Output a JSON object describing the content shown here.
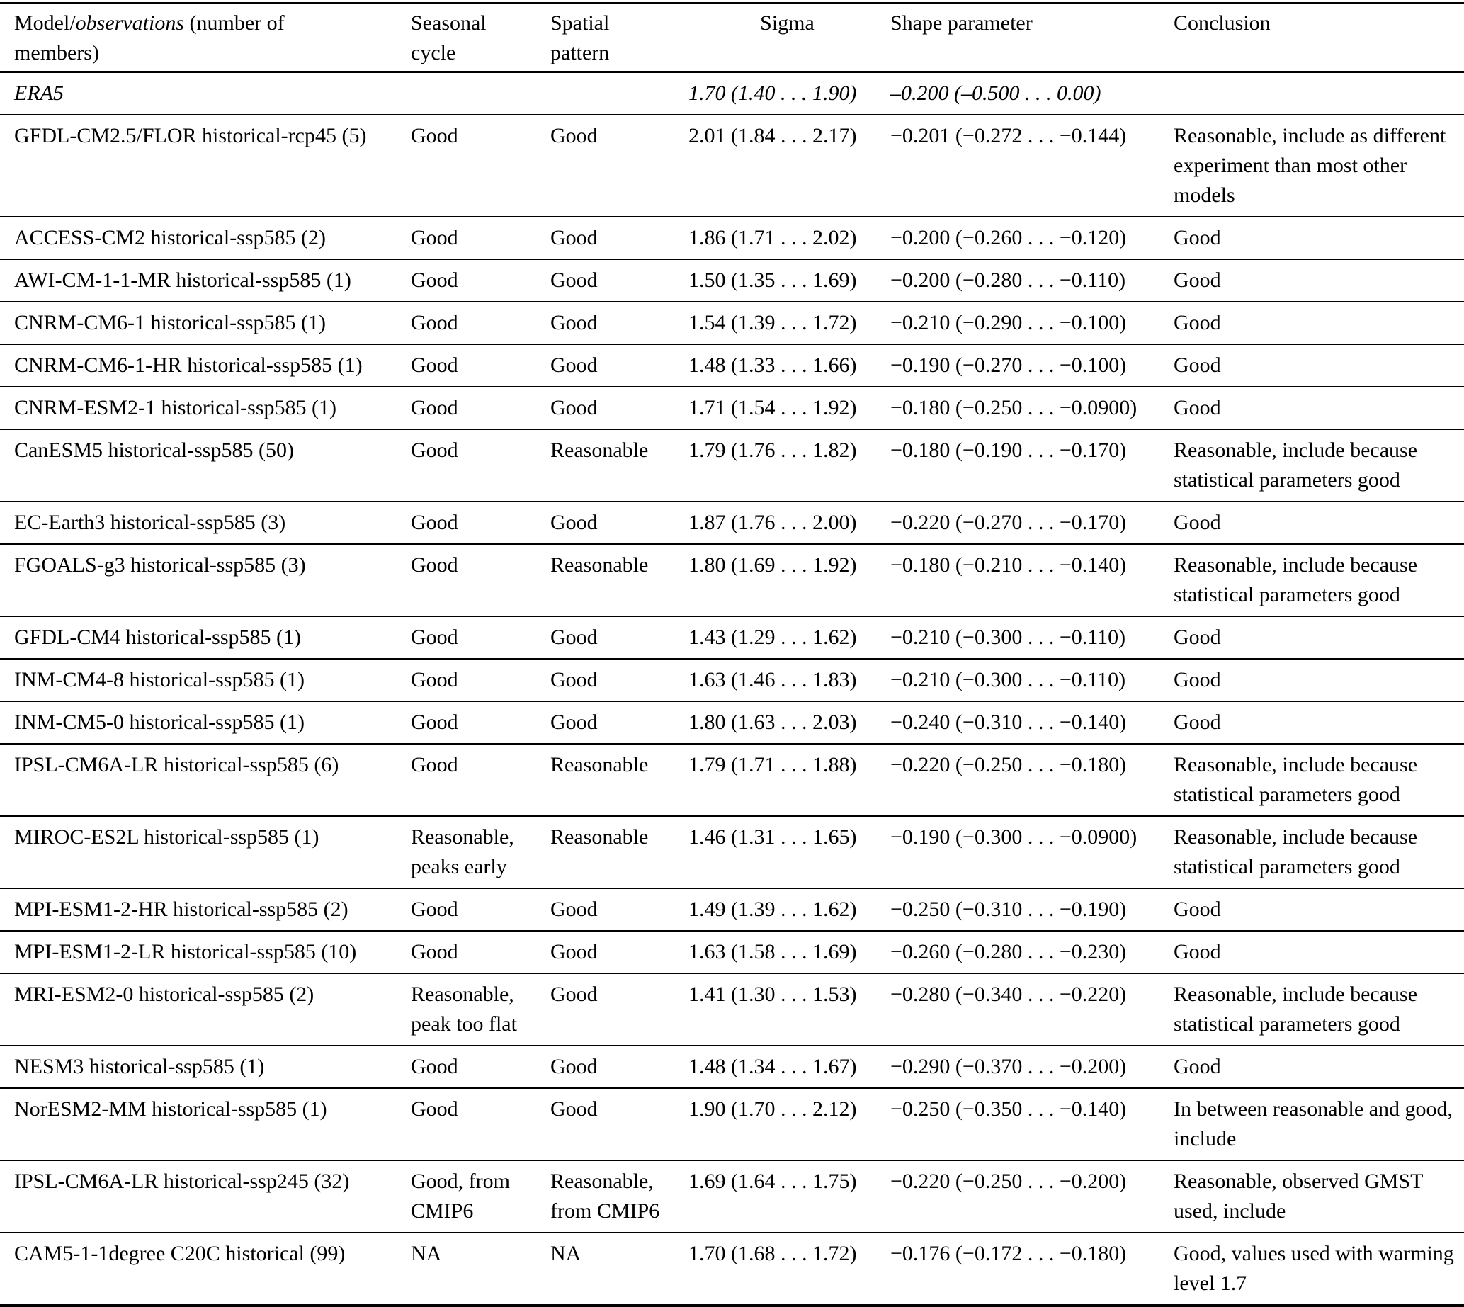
{
  "colors": {
    "background": "#ffffff",
    "text": "#000000",
    "rule": "#000000"
  },
  "table": {
    "header": {
      "model": {
        "prefix": "Model/",
        "italic_word": "observations",
        "suffix": " (number of members)"
      },
      "seasonal": "Seasonal cycle",
      "spatial": "Spatial pattern",
      "sigma": "Sigma",
      "shape": "Shape parameter",
      "conclusion": "Conclusion"
    },
    "rows": [
      {
        "model": "ERA5",
        "seasonal": "",
        "spatial": "",
        "sigma": "1.70 (1.40 . . . 1.90)",
        "shape": "–0.200 (–0.500 . . . 0.00)",
        "conclusion": "",
        "italic": true
      },
      {
        "model": "GFDL-CM2.5/FLOR historical-rcp45 (5)",
        "seasonal": "Good",
        "spatial": "Good",
        "sigma": "2.01 (1.84 . . . 2.17)",
        "shape": "−0.201 (−0.272 . . . −0.144)",
        "conclusion": "Reasonable, include as different experiment than most other models"
      },
      {
        "model": "ACCESS-CM2 historical-ssp585 (2)",
        "seasonal": "Good",
        "spatial": "Good",
        "sigma": "1.86 (1.71 . . . 2.02)",
        "shape": "−0.200 (−0.260 . . . −0.120)",
        "conclusion": "Good"
      },
      {
        "model": "AWI-CM-1-1-MR historical-ssp585 (1)",
        "seasonal": "Good",
        "spatial": "Good",
        "sigma": "1.50 (1.35 . . . 1.69)",
        "shape": "−0.200 (−0.280 . . . −0.110)",
        "conclusion": "Good"
      },
      {
        "model": "CNRM-CM6-1 historical-ssp585 (1)",
        "seasonal": "Good",
        "spatial": "Good",
        "sigma": "1.54 (1.39 . . . 1.72)",
        "shape": "−0.210 (−0.290 . . . −0.100)",
        "conclusion": "Good"
      },
      {
        "model": "CNRM-CM6-1-HR historical-ssp585 (1)",
        "seasonal": "Good",
        "spatial": "Good",
        "sigma": "1.48 (1.33 . . . 1.66)",
        "shape": "−0.190 (−0.270 . . . −0.100)",
        "conclusion": "Good"
      },
      {
        "model": "CNRM-ESM2-1 historical-ssp585 (1)",
        "seasonal": "Good",
        "spatial": "Good",
        "sigma": "1.71 (1.54 . . . 1.92)",
        "shape": "−0.180 (−0.250 . . . −0.0900)",
        "conclusion": "Good"
      },
      {
        "model": "CanESM5 historical-ssp585 (50)",
        "seasonal": "Good",
        "spatial": "Reasonable",
        "sigma": "1.79 (1.76 . . . 1.82)",
        "shape": "−0.180 (−0.190 . . . −0.170)",
        "conclusion": "Reasonable, include because statistical parameters good"
      },
      {
        "model": "EC-Earth3 historical-ssp585 (3)",
        "seasonal": "Good",
        "spatial": "Good",
        "sigma": "1.87 (1.76 . . . 2.00)",
        "shape": "−0.220 (−0.270 . . . −0.170)",
        "conclusion": "Good"
      },
      {
        "model": "FGOALS-g3 historical-ssp585 (3)",
        "seasonal": "Good",
        "spatial": "Reasonable",
        "sigma": "1.80 (1.69 . . . 1.92)",
        "shape": "−0.180 (−0.210 . . . −0.140)",
        "conclusion": "Reasonable, include because statistical parameters good"
      },
      {
        "model": "GFDL-CM4 historical-ssp585 (1)",
        "seasonal": "Good",
        "spatial": "Good",
        "sigma": "1.43 (1.29 . . . 1.62)",
        "shape": "−0.210 (−0.300 . . . −0.110)",
        "conclusion": "Good"
      },
      {
        "model": "INM-CM4-8 historical-ssp585 (1)",
        "seasonal": "Good",
        "spatial": "Good",
        "sigma": "1.63 (1.46 . . . 1.83)",
        "shape": "−0.210 (−0.300 . . . −0.110)",
        "conclusion": "Good"
      },
      {
        "model": "INM-CM5-0 historical-ssp585 (1)",
        "seasonal": "Good",
        "spatial": "Good",
        "sigma": "1.80 (1.63 . . . 2.03)",
        "shape": "−0.240 (−0.310 . . . −0.140)",
        "conclusion": "Good"
      },
      {
        "model": "IPSL-CM6A-LR historical-ssp585 (6)",
        "seasonal": "Good",
        "spatial": "Reasonable",
        "sigma": "1.79 (1.71 . . . 1.88)",
        "shape": "−0.220 (−0.250 . . . −0.180)",
        "conclusion": "Reasonable, include because statistical parameters good"
      },
      {
        "model": "MIROC-ES2L historical-ssp585 (1)",
        "seasonal": "Reasonable, peaks early",
        "spatial": "Reasonable",
        "sigma": "1.46 (1.31 . . . 1.65)",
        "shape": "−0.190 (−0.300 . . . −0.0900)",
        "conclusion": "Reasonable, include because statistical parameters good"
      },
      {
        "model": "MPI-ESM1-2-HR historical-ssp585 (2)",
        "seasonal": "Good",
        "spatial": "Good",
        "sigma": "1.49 (1.39 . . . 1.62)",
        "shape": "−0.250 (−0.310 . . . −0.190)",
        "conclusion": "Good"
      },
      {
        "model": "MPI-ESM1-2-LR historical-ssp585 (10)",
        "seasonal": "Good",
        "spatial": "Good",
        "sigma": "1.63 (1.58 . . . 1.69)",
        "shape": "−0.260 (−0.280 . . . −0.230)",
        "conclusion": "Good"
      },
      {
        "model": "MRI-ESM2-0 historical-ssp585 (2)",
        "seasonal": "Reasonable, peak too flat",
        "spatial": "Good",
        "sigma": "1.41 (1.30 . . . 1.53)",
        "shape": "−0.280 (−0.340 . . . −0.220)",
        "conclusion": "Reasonable, include because statistical parameters good"
      },
      {
        "model": "NESM3 historical-ssp585 (1)",
        "seasonal": "Good",
        "spatial": "Good",
        "sigma": "1.48 (1.34 . . . 1.67)",
        "shape": "−0.290 (−0.370 . . . −0.200)",
        "conclusion": "Good"
      },
      {
        "model": "NorESM2-MM historical-ssp585 (1)",
        "seasonal": "Good",
        "spatial": "Good",
        "sigma": "1.90 (1.70 . . . 2.12)",
        "shape": "−0.250 (−0.350 . . . −0.140)",
        "conclusion": "In between reasonable and good, include"
      },
      {
        "model": "IPSL-CM6A-LR historical-ssp245 (32)",
        "seasonal": "Good, from CMIP6",
        "spatial": "Reasonable, from CMIP6",
        "sigma": "1.69 (1.64 . . . 1.75)",
        "shape": "−0.220 (−0.250 . . . −0.200)",
        "conclusion": "Reasonable, observed GMST used, include"
      },
      {
        "model": "CAM5-1-1degree C20C historical (99)",
        "seasonal": "NA",
        "spatial": "NA",
        "sigma": "1.70 (1.68 . . . 1.72)",
        "shape": "−0.176 (−0.172 . . . −0.180)",
        "conclusion": "Good, values used with warming level 1.7"
      }
    ]
  }
}
